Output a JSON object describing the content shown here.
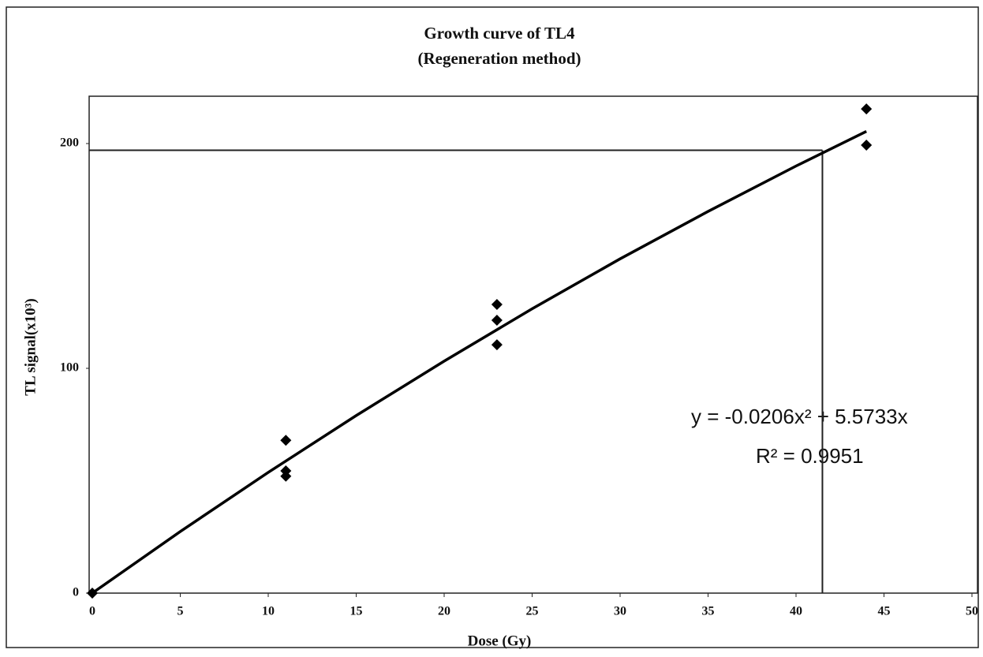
{
  "chart_data": {
    "type": "scatter",
    "title": [
      "Growth  curve of  TL4",
      "(Regeneration method)"
    ],
    "x_label": "Dose (Gy)",
    "y_label": "TL signal(x10³)",
    "series": [
      {
        "color": "#000000",
        "x": [
          0,
          11,
          11,
          11,
          23,
          23,
          23,
          44,
          44
        ],
        "values": [
          0,
          68,
          54.4,
          52,
          128.4,
          121.4,
          110.5,
          215.4,
          199.3
        ]
      }
    ],
    "trendline": {
      "color": "#000000",
      "x": [
        0,
        5,
        10,
        15,
        20,
        25,
        30,
        35,
        40,
        44
      ],
      "values": [
        0,
        27.4,
        53.7,
        79.0,
        103.2,
        126.5,
        148.7,
        169.8,
        190.0,
        205.4
      ],
      "equation": "y = -0.0206x² + 5.5733x",
      "r_squared": "R² = 0.9951"
    },
    "reference": {
      "x": 41.5,
      "y": 197
    },
    "xlim": [
      0,
      50
    ],
    "xticks": [
      0,
      5,
      10,
      15,
      20,
      25,
      30,
      35,
      40,
      45,
      50
    ],
    "ylim": [
      0,
      220
    ],
    "yticks": [
      0,
      100,
      200
    ],
    "grid": false
  }
}
